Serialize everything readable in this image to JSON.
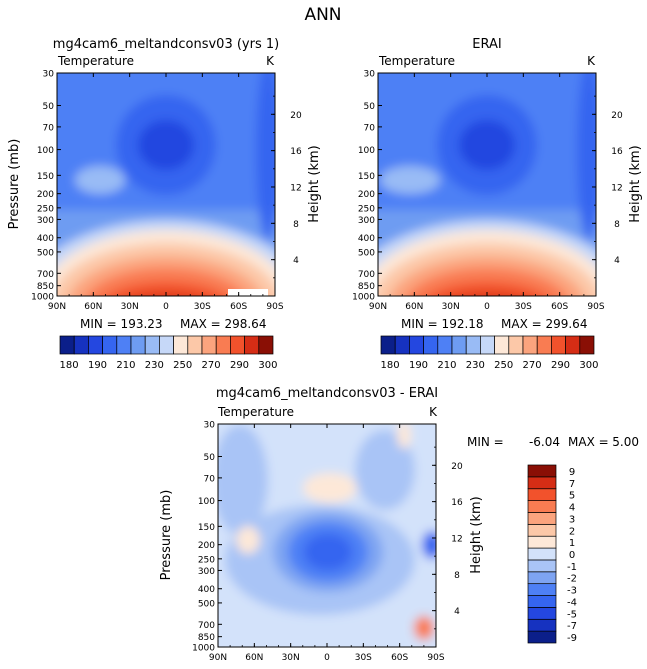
{
  "page_title": "ANN",
  "chart_data": [
    {
      "type": "heatmap",
      "id": "model",
      "title": "mg4cam6_meltandconsv03 (yrs 1)",
      "subtitle_left": "Temperature",
      "subtitle_right": "K",
      "xlabel": "",
      "ylabel": "Pressure (mb)",
      "ylabel_right": "Height (km)",
      "x_ticks": [
        "90N",
        "60N",
        "30N",
        "0",
        "30S",
        "60S",
        "90S"
      ],
      "x_tick_values": [
        90,
        60,
        30,
        0,
        -30,
        -60,
        -90
      ],
      "y_ticks": [
        "30",
        "50",
        "70",
        "100",
        "150",
        "200",
        "250",
        "300",
        "400",
        "500",
        "700",
        "850",
        "1000"
      ],
      "y_tick_values": [
        30,
        50,
        70,
        100,
        150,
        200,
        250,
        300,
        400,
        500,
        700,
        850,
        1000
      ],
      "y_scale": "log",
      "height_ticks": [
        "4",
        "8",
        "12",
        "16",
        "20"
      ],
      "height_tick_values": [
        4,
        8,
        12,
        16,
        20
      ],
      "min": 193.23,
      "max": 298.64,
      "min_label": "MIN = 193.23",
      "max_label": "MAX = 298.64",
      "colorbar": {
        "orientation": "horizontal",
        "levels": [
          180,
          185,
          190,
          200,
          210,
          220,
          230,
          240,
          250,
          260,
          270,
          280,
          290,
          295,
          300
        ],
        "labels": [
          "180",
          "190",
          "210",
          "230",
          "250",
          "270",
          "290",
          "300"
        ],
        "colors": [
          "#0b1f8a",
          "#1632c0",
          "#2447e0",
          "#3565f0",
          "#4e80f5",
          "#6e9cf2",
          "#99bbf5",
          "#c6d8f8",
          "#fde8d8",
          "#fcc8a8",
          "#fba47e",
          "#f97c52",
          "#f2522c",
          "#d52d15",
          "#8a0f05"
        ]
      }
    },
    {
      "type": "heatmap",
      "id": "obs",
      "title": "ERAI",
      "subtitle_left": "Temperature",
      "subtitle_right": "K",
      "xlabel": "",
      "ylabel": "",
      "ylabel_right": "Height (km)",
      "x_ticks": [
        "90N",
        "60N",
        "30N",
        "0",
        "30S",
        "60S",
        "90S"
      ],
      "x_tick_values": [
        90,
        60,
        30,
        0,
        -30,
        -60,
        -90
      ],
      "y_ticks": [
        "30",
        "50",
        "70",
        "100",
        "150",
        "200",
        "250",
        "300",
        "400",
        "500",
        "700",
        "850",
        "1000"
      ],
      "y_tick_values": [
        30,
        50,
        70,
        100,
        150,
        200,
        250,
        300,
        400,
        500,
        700,
        850,
        1000
      ],
      "y_scale": "log",
      "height_ticks": [
        "4",
        "8",
        "12",
        "16",
        "20"
      ],
      "height_tick_values": [
        4,
        8,
        12,
        16,
        20
      ],
      "min": 192.18,
      "max": 299.64,
      "min_label": "MIN = 192.18",
      "max_label": "MAX = 299.64",
      "colorbar": {
        "orientation": "horizontal",
        "levels": [
          180,
          185,
          190,
          200,
          210,
          220,
          230,
          240,
          250,
          260,
          270,
          280,
          290,
          295,
          300
        ],
        "labels": [
          "180",
          "190",
          "210",
          "230",
          "250",
          "270",
          "290",
          "300"
        ],
        "colors": [
          "#0b1f8a",
          "#1632c0",
          "#2447e0",
          "#3565f0",
          "#4e80f5",
          "#6e9cf2",
          "#99bbf5",
          "#c6d8f8",
          "#fde8d8",
          "#fcc8a8",
          "#fba47e",
          "#f97c52",
          "#f2522c",
          "#d52d15",
          "#8a0f05"
        ]
      }
    },
    {
      "type": "heatmap",
      "id": "diff",
      "title": "mg4cam6_meltandconsv03 - ERAI",
      "subtitle_left": "Temperature",
      "subtitle_right": "K",
      "xlabel": "",
      "ylabel": "Pressure (mb)",
      "ylabel_right": "Height (km)",
      "x_ticks": [
        "90N",
        "60N",
        "30N",
        "0",
        "30S",
        "60S",
        "90S"
      ],
      "x_tick_values": [
        90,
        60,
        30,
        0,
        -30,
        -60,
        -90
      ],
      "y_ticks": [
        "30",
        "50",
        "70",
        "100",
        "150",
        "200",
        "250",
        "300",
        "400",
        "500",
        "700",
        "850",
        "1000"
      ],
      "y_tick_values": [
        30,
        50,
        70,
        100,
        150,
        200,
        250,
        300,
        400,
        500,
        700,
        850,
        1000
      ],
      "y_scale": "log",
      "height_ticks": [
        "4",
        "8",
        "12",
        "16",
        "20"
      ],
      "height_tick_values": [
        4,
        8,
        12,
        16,
        20
      ],
      "min": -6.04,
      "max": 5.0,
      "min_label": "MIN =",
      "min_value_label": "-6.04",
      "max_label": "MAX =",
      "max_value_label": "5.00",
      "colorbar": {
        "orientation": "vertical",
        "levels": [
          -9,
          -7,
          -5,
          -4,
          -3,
          -2,
          -1,
          0,
          1,
          2,
          3,
          4,
          5,
          7,
          9
        ],
        "labels": [
          "-9",
          "-7",
          "-5",
          "-4",
          "-3",
          "-2",
          "-1",
          "0",
          "1",
          "2",
          "3",
          "4",
          "5",
          "7",
          "9"
        ],
        "colors": [
          "#0b1f8a",
          "#1632c0",
          "#2447e0",
          "#3565f0",
          "#4e80f5",
          "#7ea4f2",
          "#a9c4f6",
          "#d3e2fa",
          "#fde8d8",
          "#fcc8a8",
          "#fba47e",
          "#f97c52",
          "#f2522c",
          "#d52d15",
          "#8a0f05"
        ]
      }
    }
  ]
}
